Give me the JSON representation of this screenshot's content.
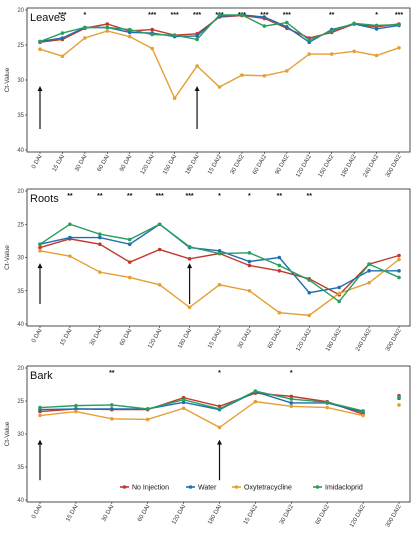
{
  "chart_data": [
    {
      "type": "line",
      "title": "Leaves",
      "ylabel": "Ct-Value",
      "ylim": [
        40,
        20
      ],
      "yticks": [
        20,
        25,
        30,
        35,
        40
      ],
      "categories": [
        "0 DAI",
        "15 DAI",
        "30 DAI",
        "60 DAI",
        "90 DAI",
        "120 DAI",
        "150 DAI",
        "180 DAI",
        "15 DAI2",
        "30 DAI2",
        "60 DAI2",
        "90 DAI2",
        "120 DAI2",
        "150 DAI2",
        "180 DAI2",
        "240 DAI2",
        "300 DAI2"
      ],
      "series": [
        {
          "name": "No Injection",
          "color": "#c0392b",
          "values": [
            24.6,
            24.2,
            22.6,
            22.0,
            23.0,
            22.8,
            23.6,
            23.4,
            21.0,
            20.8,
            21.2,
            22.6,
            24.0,
            23.2,
            22.0,
            22.4,
            22.0
          ]
        },
        {
          "name": "Water",
          "color": "#1f6fae",
          "values": [
            24.5,
            24.0,
            22.5,
            22.5,
            23.2,
            23.3,
            23.8,
            23.7,
            20.9,
            20.7,
            21.0,
            22.4,
            24.6,
            22.8,
            22.0,
            22.7,
            22.2
          ]
        },
        {
          "name": "Oxytetracycline",
          "color": "#e69f35",
          "values": [
            25.6,
            26.6,
            24.0,
            23.0,
            23.8,
            25.5,
            32.6,
            28.0,
            31.0,
            29.3,
            29.4,
            28.7,
            26.3,
            26.3,
            25.9,
            26.5,
            25.4
          ]
        },
        {
          "name": "Imidacloprid",
          "color": "#2a9d5f",
          "values": [
            24.5,
            23.3,
            22.5,
            22.5,
            22.8,
            23.5,
            23.6,
            24.2,
            20.7,
            20.7,
            22.3,
            21.8,
            24.3,
            23.0,
            21.9,
            22.2,
            22.1
          ]
        }
      ],
      "significance": [
        {
          "category": "15 DAI",
          "label": "***"
        },
        {
          "category": "30 DAI",
          "label": "*"
        },
        {
          "category": "120 DAI",
          "label": "***"
        },
        {
          "category": "150 DAI",
          "label": "***"
        },
        {
          "category": "180 DAI",
          "label": "***"
        },
        {
          "category": "15 DAI2",
          "label": "***"
        },
        {
          "category": "30 DAI2",
          "label": "***"
        },
        {
          "category": "60 DAI2",
          "label": "***"
        },
        {
          "category": "90 DAI2",
          "label": "***"
        },
        {
          "category": "150 DAI2",
          "label": "**"
        },
        {
          "category": "240 DAI2",
          "label": "*"
        },
        {
          "category": "300 DAI2",
          "label": "***"
        }
      ],
      "arrows": [
        "0 DAI",
        "180 DAI"
      ]
    },
    {
      "type": "line",
      "title": "Roots",
      "ylabel": "Ct-Value",
      "ylim": [
        40,
        20
      ],
      "yticks": [
        20,
        25,
        30,
        35,
        40
      ],
      "categories": [
        "0 DAI",
        "15 DAI",
        "30 DAI",
        "60 DAI",
        "120 DAI",
        "180 DAI",
        "15 DAI2",
        "30 DAI2",
        "60 DAI2",
        "120 DAI2",
        "180 DAI2",
        "240 DAI2",
        "300 DAI2"
      ],
      "series": [
        {
          "name": "No Injection",
          "color": "#c0392b",
          "values": [
            28.5,
            27.2,
            28.0,
            30.7,
            28.8,
            30.2,
            29.4,
            31.2,
            32.0,
            33.2,
            35.6,
            31.0,
            29.7
          ]
        },
        {
          "name": "Water",
          "color": "#1f6fae",
          "values": [
            28.0,
            27.0,
            27.0,
            28.0,
            25.0,
            28.5,
            29.0,
            30.6,
            30.0,
            35.3,
            34.5,
            32.0,
            32.0
          ]
        },
        {
          "name": "Oxytetracycline",
          "color": "#e69f35",
          "values": [
            29.0,
            29.8,
            32.2,
            33.0,
            34.1,
            37.5,
            34.1,
            35.0,
            38.3,
            38.7,
            35.4,
            33.8,
            30.3
          ]
        },
        {
          "name": "Imidacloprid",
          "color": "#2a9d5f",
          "values": [
            28.0,
            25.0,
            26.5,
            27.3,
            25.0,
            28.4,
            29.4,
            29.3,
            31.2,
            33.4,
            36.6,
            31.0,
            33.0
          ]
        }
      ],
      "significance": [
        {
          "category": "15 DAI",
          "label": "**"
        },
        {
          "category": "30 DAI",
          "label": "**"
        },
        {
          "category": "60 DAI",
          "label": "**"
        },
        {
          "category": "120 DAI",
          "label": "***"
        },
        {
          "category": "180 DAI",
          "label": "***"
        },
        {
          "category": "15 DAI2",
          "label": "*"
        },
        {
          "category": "30 DAI2",
          "label": "*"
        },
        {
          "category": "60 DAI2",
          "label": "**"
        },
        {
          "category": "120 DAI2",
          "label": "**"
        }
      ],
      "arrows": [
        "0 DAI",
        "180 DAI"
      ]
    },
    {
      "type": "line",
      "title": "Bark",
      "ylabel": "Ct-Value",
      "ylim": [
        40,
        20
      ],
      "yticks": [
        20,
        25,
        30,
        35,
        40
      ],
      "categories": [
        "0 DAI",
        "15 DAI",
        "30 DAI",
        "60 DAI",
        "120 DAI",
        "180 DAI",
        "15 DAI2",
        "30 DAI2",
        "60 DAI2",
        "120 DAI2",
        "300 DAI2"
      ],
      "series": [
        {
          "name": "No Injection",
          "color": "#c0392b",
          "values": [
            26.6,
            26.2,
            26.3,
            26.3,
            24.5,
            25.8,
            23.8,
            24.3,
            25.1,
            27.0,
            24.2
          ]
        },
        {
          "name": "Water",
          "color": "#1f6fae",
          "values": [
            26.3,
            26.2,
            26.2,
            26.2,
            25.2,
            26.3,
            23.6,
            25.3,
            25.3,
            26.7,
            24.6
          ]
        },
        {
          "name": "Oxytetracycline",
          "color": "#e69f35",
          "values": [
            27.2,
            26.6,
            27.7,
            27.8,
            26.1,
            29.0,
            25.1,
            25.8,
            26.0,
            27.2,
            25.6
          ]
        },
        {
          "name": "Imidacloprid",
          "color": "#2a9d5f",
          "values": [
            26.0,
            25.7,
            25.6,
            26.2,
            24.8,
            26.2,
            23.5,
            24.7,
            25.2,
            26.5,
            24.4
          ]
        }
      ],
      "significance": [
        {
          "category": "30 DAI",
          "label": "**"
        },
        {
          "category": "180 DAI",
          "label": "*"
        },
        {
          "category": "30 DAI2",
          "label": "*"
        }
      ],
      "arrows": [
        "0 DAI",
        "180 DAI"
      ]
    }
  ],
  "legend": {
    "position": "bottom",
    "items": [
      {
        "label": "No Injection",
        "color": "#c0392b"
      },
      {
        "label": "Water",
        "color": "#1f6fae"
      },
      {
        "label": "Oxytetracycline",
        "color": "#e69f35"
      },
      {
        "label": "Imidacloprid",
        "color": "#2a9d5f"
      }
    ]
  }
}
